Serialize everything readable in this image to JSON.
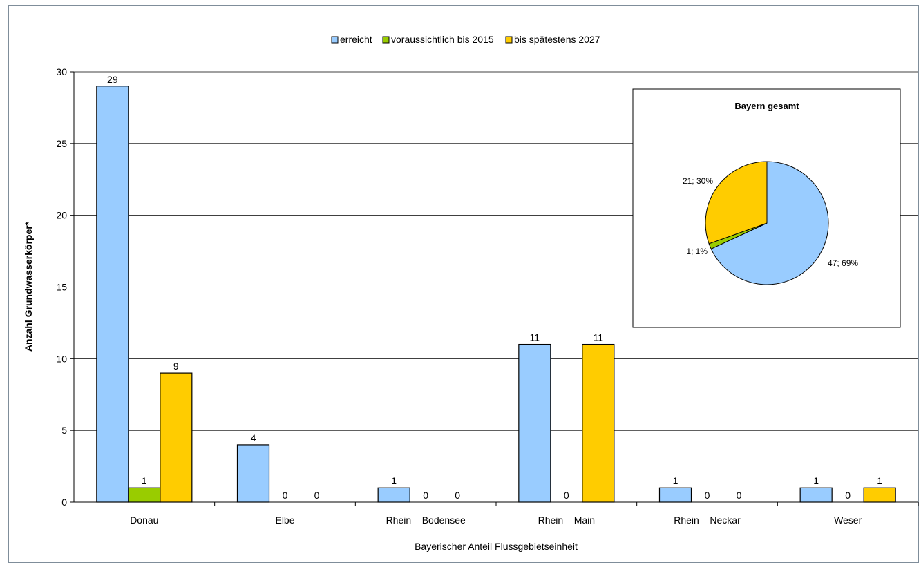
{
  "chart_data": [
    {
      "type": "bar",
      "xlabel": "Bayerischer Anteil Flussgebietseinheit",
      "ylabel": "Anzahl Grundwasserkörper*",
      "ylim": [
        0,
        30
      ],
      "yticks": [
        "0",
        "5",
        "10",
        "15",
        "20",
        "25",
        "30"
      ],
      "grid": true,
      "legend_position": "top",
      "categories": [
        "Donau",
        "Elbe",
        "Rhein – Bodensee",
        "Rhein – Main",
        "Rhein – Neckar",
        "Weser"
      ],
      "series": [
        {
          "name": "erreicht",
          "color": "#99ccff",
          "values": [
            29,
            4,
            1,
            11,
            1,
            1
          ],
          "labels": [
            "29",
            "4",
            "1",
            "11",
            "1",
            "1"
          ]
        },
        {
          "name": "voraussichtlich bis 2015",
          "color": "#99cc00",
          "values": [
            1,
            0,
            0,
            0,
            0,
            0
          ],
          "labels": [
            "1",
            "0",
            "0",
            "0",
            "0",
            "0"
          ]
        },
        {
          "name": "bis spätestens 2027",
          "color": "#ffcc00",
          "values": [
            9,
            0,
            0,
            11,
            0,
            1
          ],
          "labels": [
            "9",
            "0",
            "0",
            "11",
            "0",
            "1"
          ]
        }
      ]
    },
    {
      "type": "pie",
      "title": "Bayern gesamt",
      "slices": [
        {
          "name": "erreicht",
          "value": 47,
          "percent": 69,
          "label": "47; 69%",
          "color": "#99ccff"
        },
        {
          "name": "voraussichtlich bis 2015",
          "value": 1,
          "percent": 1,
          "label": "1; 1%",
          "color": "#99cc00"
        },
        {
          "name": "bis spätestens 2027",
          "value": 21,
          "percent": 30,
          "label": "21; 30%",
          "color": "#ffcc00"
        }
      ]
    }
  ]
}
